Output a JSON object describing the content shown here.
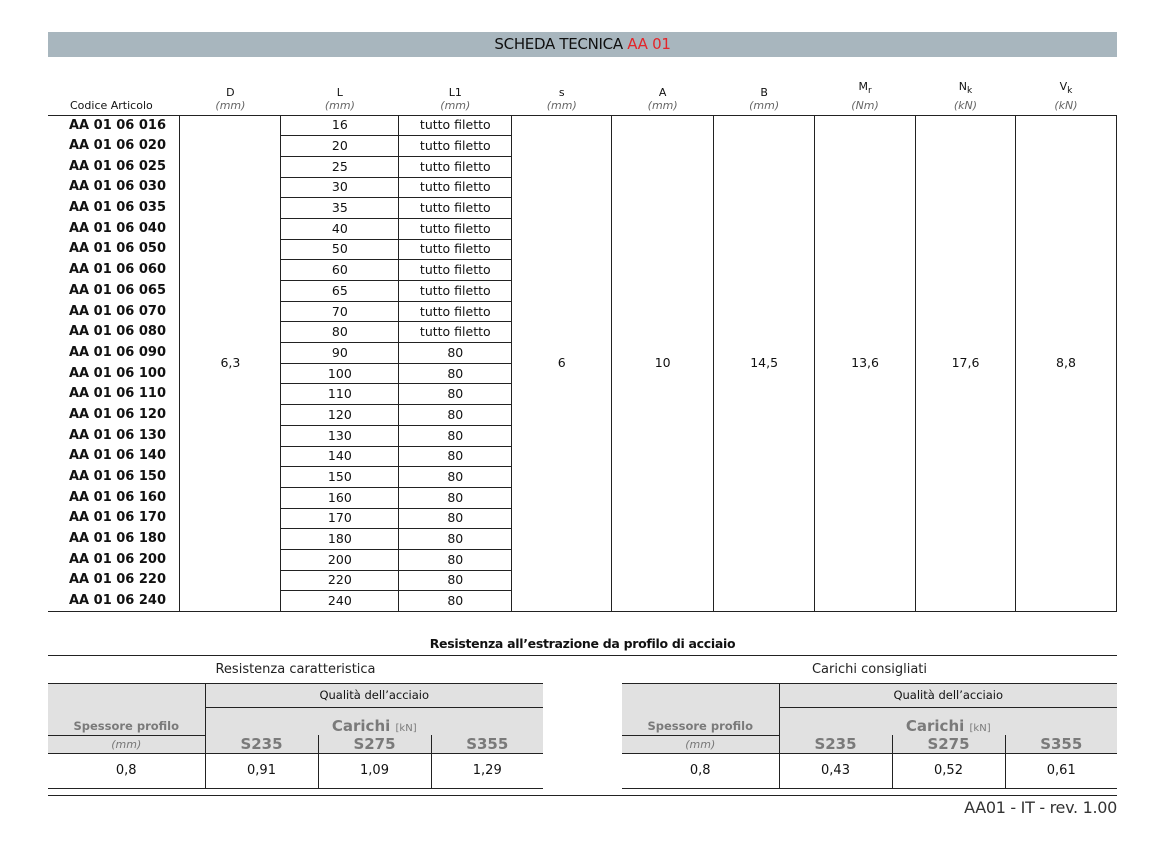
{
  "header": {
    "title": "SCHEDA TECNICA",
    "code": "AA 01",
    "accent": "#e3262a",
    "bar_color": "#a8b6be"
  },
  "columns": [
    {
      "label": "Codice Articolo",
      "unit": ""
    },
    {
      "label": "D",
      "unit": "(mm)"
    },
    {
      "label": "L",
      "unit": "(mm)"
    },
    {
      "label": "L1",
      "unit": "(mm)"
    },
    {
      "label": "s",
      "unit": "(mm)"
    },
    {
      "label": "A",
      "unit": "(mm)"
    },
    {
      "label": "B",
      "unit": "(mm)"
    },
    {
      "label": "M",
      "sub": "r",
      "unit": "(Nm)"
    },
    {
      "label": "N",
      "sub": "k",
      "unit": "(kN)"
    },
    {
      "label": "V",
      "sub": "k",
      "unit": "(kN)"
    }
  ],
  "rows": [
    {
      "code": "AA 01 06 016",
      "L": "16",
      "L1": "tutto filetto"
    },
    {
      "code": "AA 01 06 020",
      "L": "20",
      "L1": "tutto filetto"
    },
    {
      "code": "AA 01 06 025",
      "L": "25",
      "L1": "tutto filetto"
    },
    {
      "code": "AA 01 06 030",
      "L": "30",
      "L1": "tutto filetto"
    },
    {
      "code": "AA 01 06 035",
      "L": "35",
      "L1": "tutto filetto"
    },
    {
      "code": "AA 01 06 040",
      "L": "40",
      "L1": "tutto filetto"
    },
    {
      "code": "AA 01 06 050",
      "L": "50",
      "L1": "tutto filetto"
    },
    {
      "code": "AA 01 06 060",
      "L": "60",
      "L1": "tutto filetto"
    },
    {
      "code": "AA 01 06 065",
      "L": "65",
      "L1": "tutto filetto"
    },
    {
      "code": "AA 01 06 070",
      "L": "70",
      "L1": "tutto filetto"
    },
    {
      "code": "AA 01 06 080",
      "L": "80",
      "L1": "tutto filetto"
    },
    {
      "code": "AA 01 06 090",
      "L": "90",
      "L1": "80"
    },
    {
      "code": "AA 01 06 100",
      "L": "100",
      "L1": "80"
    },
    {
      "code": "AA 01 06 110",
      "L": "110",
      "L1": "80"
    },
    {
      "code": "AA 01 06 120",
      "L": "120",
      "L1": "80"
    },
    {
      "code": "AA 01 06 130",
      "L": "130",
      "L1": "80"
    },
    {
      "code": "AA 01 06 140",
      "L": "140",
      "L1": "80"
    },
    {
      "code": "AA 01 06 150",
      "L": "150",
      "L1": "80"
    },
    {
      "code": "AA 01 06 160",
      "L": "160",
      "L1": "80"
    },
    {
      "code": "AA 01 06 170",
      "L": "170",
      "L1": "80"
    },
    {
      "code": "AA 01 06 180",
      "L": "180",
      "L1": "80"
    },
    {
      "code": "AA 01 06 200",
      "L": "200",
      "L1": "80"
    },
    {
      "code": "AA 01 06 220",
      "L": "220",
      "L1": "80"
    },
    {
      "code": "AA 01 06 240",
      "L": "240",
      "L1": "80"
    }
  ],
  "shared": {
    "D": "6,3",
    "s": "6",
    "A": "10",
    "B": "14,5",
    "Mr": "13,6",
    "Nk": "17,6",
    "Vk": "8,8"
  },
  "extraction": {
    "title": "Resistenza  all’estrazione da profilo di acciaio",
    "tables": [
      {
        "caption": "Resistenza  caratteristica",
        "quality": "Qualità dell’acciaio",
        "thickness_label": "Spessore profilo",
        "thickness_unit": "(mm)",
        "loads": "Carichi",
        "loads_unit": "[kN]",
        "grades": [
          "S235",
          "S275",
          "S355"
        ],
        "thickness": "0,8",
        "values": [
          "0,91",
          "1,09",
          "1,29"
        ]
      },
      {
        "caption": "Carichi consigliati",
        "quality": "Qualità dell’acciaio",
        "thickness_label": "Spessore profilo",
        "thickness_unit": "(mm)",
        "loads": "Carichi",
        "loads_unit": "[kN]",
        "grades": [
          "S235",
          "S275",
          "S355"
        ],
        "thickness": "0,8",
        "values": [
          "0,43",
          "0,52",
          "0,61"
        ]
      }
    ]
  },
  "footer": "AA01 - IT - rev. 1.00"
}
